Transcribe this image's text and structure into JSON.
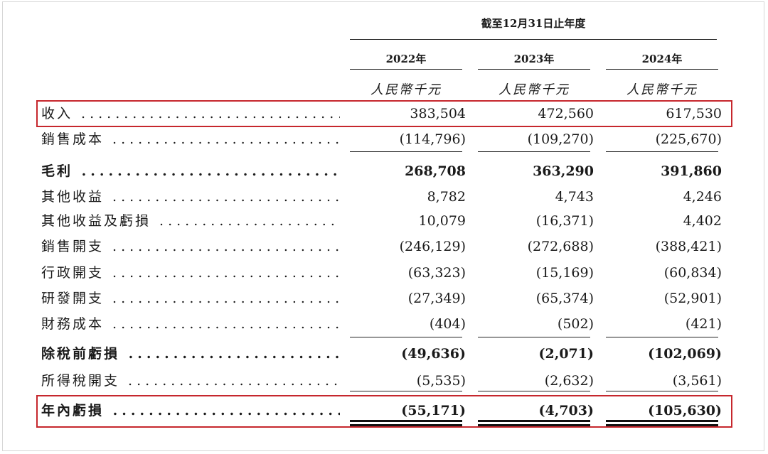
{
  "header": {
    "period": "截至12月31日止年度",
    "years": [
      "2022年",
      "2023年",
      "2024年"
    ],
    "unit": "人民幣千元"
  },
  "rows": [
    {
      "label": "收入",
      "values": [
        "383,504",
        "472,560",
        "617,530"
      ],
      "bold": false
    },
    {
      "label": "銷售成本",
      "values": [
        "(114,796)",
        "(109,270)",
        "(225,670)"
      ],
      "bold": false
    },
    {
      "label": "毛利",
      "values": [
        "268,708",
        "363,290",
        "391,860"
      ],
      "bold": true
    },
    {
      "label": "其他收益",
      "values": [
        "8,782",
        "4,743",
        "4,246"
      ],
      "bold": false
    },
    {
      "label": "其他收益及虧損",
      "values": [
        "10,079",
        "(16,371)",
        "4,402"
      ],
      "bold": false
    },
    {
      "label": "銷售開支",
      "values": [
        "(246,129)",
        "(272,688)",
        "(388,421)"
      ],
      "bold": false
    },
    {
      "label": "行政開支",
      "values": [
        "(63,323)",
        "(15,169)",
        "(60,834)"
      ],
      "bold": false
    },
    {
      "label": "研發開支",
      "values": [
        "(27,349)",
        "(65,374)",
        "(52,901)"
      ],
      "bold": false
    },
    {
      "label": "財務成本",
      "values": [
        "(404)",
        "(502)",
        "(421)"
      ],
      "bold": false
    },
    {
      "label": "除稅前虧損",
      "values": [
        "(49,636)",
        "(2,071)",
        "(102,069)"
      ],
      "bold": true
    },
    {
      "label": "所得稅開支",
      "values": [
        "(5,535)",
        "(2,632)",
        "(3,561)"
      ],
      "bold": false
    },
    {
      "label": "年內虧損",
      "values": [
        "(55,171)",
        "(4,703)",
        "(105,630)"
      ],
      "bold": true
    }
  ],
  "highlight_color": "#c6272d"
}
